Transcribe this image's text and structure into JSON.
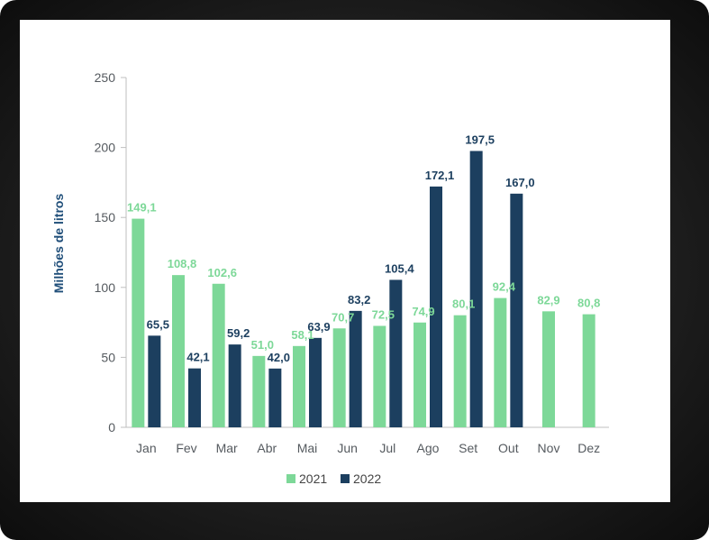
{
  "chart_data": {
    "type": "bar",
    "categories": [
      "Jan",
      "Fev",
      "Mar",
      "Abr",
      "Mai",
      "Jun",
      "Jul",
      "Ago",
      "Set",
      "Out",
      "Nov",
      "Dez"
    ],
    "series": [
      {
        "name": "2021",
        "color": "#7dd898",
        "label_color": "#7dd898",
        "values": [
          149.1,
          108.8,
          102.6,
          51.0,
          58.1,
          70.7,
          72.5,
          74.9,
          80.1,
          92.4,
          82.9,
          80.8
        ],
        "labels": [
          "149,1",
          "108,8",
          "102,6",
          "51,0",
          "58,1",
          "70,7",
          "72,5",
          "74,9",
          "80,1",
          "92,4",
          "82,9",
          "80,8"
        ]
      },
      {
        "name": "2022",
        "color": "#1c3f5f",
        "label_color": "#1c3f5f",
        "values": [
          65.5,
          42.1,
          59.2,
          42.0,
          63.9,
          83.2,
          105.4,
          172.1,
          197.5,
          167.0,
          null,
          null
        ],
        "labels": [
          "65,5",
          "42,1",
          "59,2",
          "42,0",
          "63,9",
          "83,2",
          "105,4",
          "172,1",
          "197,5",
          "167,0",
          "",
          ""
        ]
      }
    ],
    "ylabel": "Milhões de litros",
    "xlabel": "",
    "title": "",
    "ylim": [
      0,
      250
    ],
    "yticks": [
      0,
      50,
      100,
      150,
      200,
      250
    ],
    "grid": false,
    "legend": "bottom"
  }
}
